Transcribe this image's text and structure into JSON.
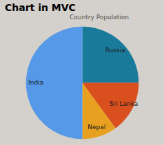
{
  "chart_data": {
    "type": "pie",
    "title": "Chart in MVC",
    "subtitle": "Country Population",
    "categories": [
      "Russia",
      "Sri Lanka",
      "Nepal",
      "India"
    ],
    "values": [
      25,
      15,
      10,
      50
    ],
    "colors": [
      "#1a7a9a",
      "#d94f1e",
      "#e8a020",
      "#5599e8"
    ]
  }
}
